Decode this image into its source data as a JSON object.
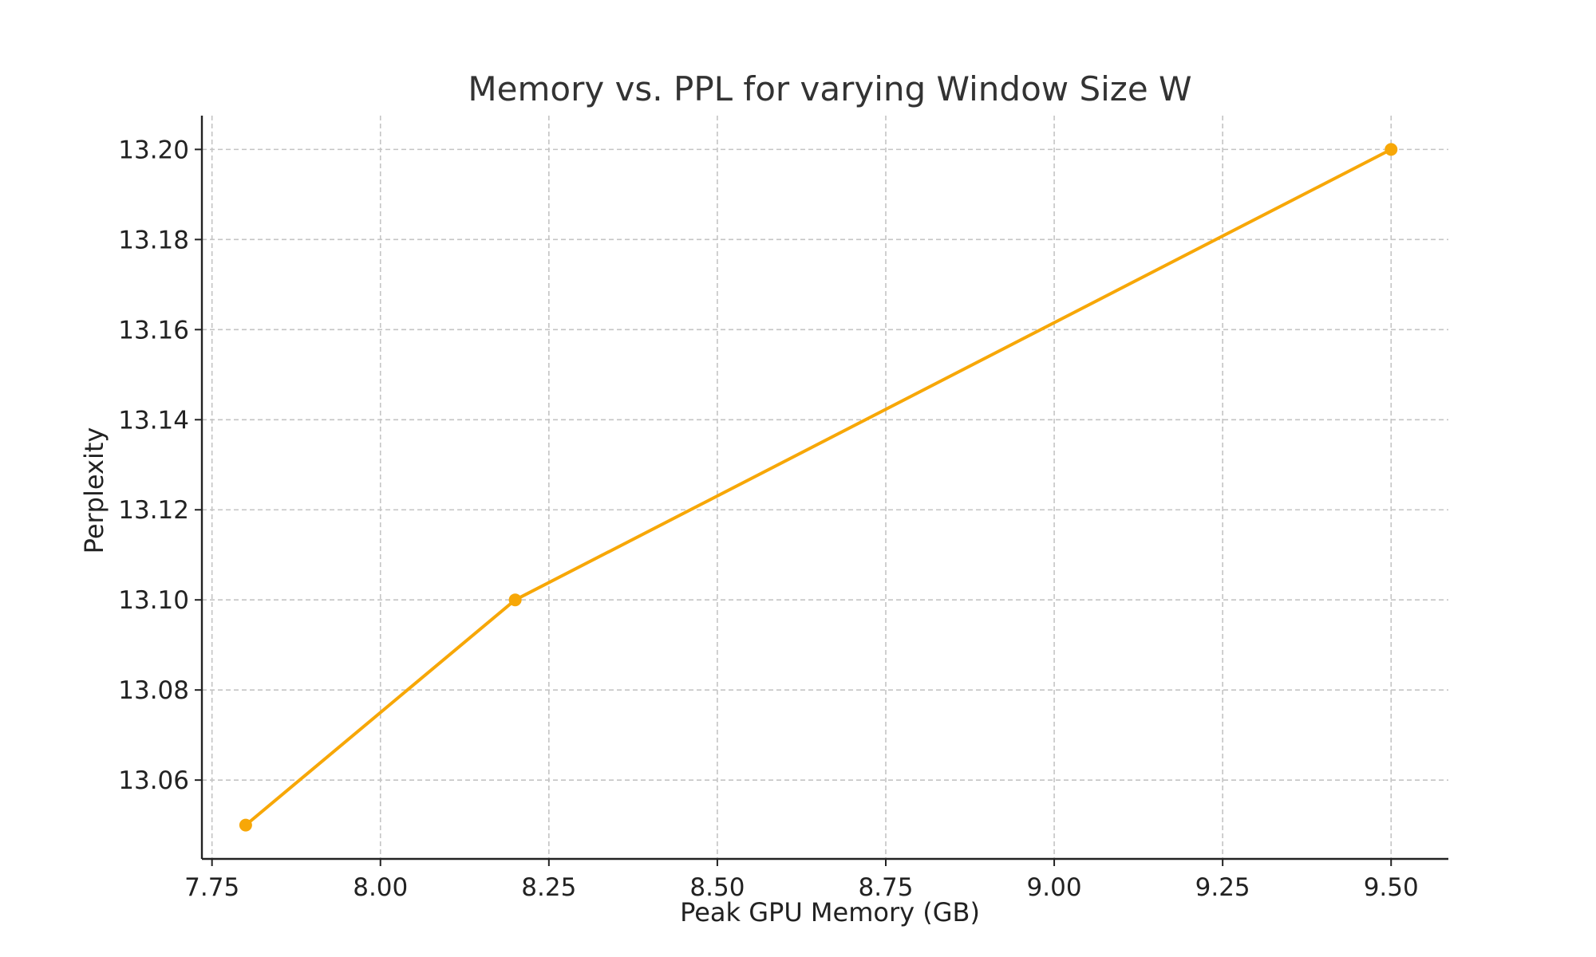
{
  "colors": {
    "series": "#f7a707",
    "grid": "#c4c4c4",
    "axis": "#222222",
    "title": "#333333"
  },
  "chart_data": {
    "type": "line",
    "title": "Memory vs. PPL for varying Window Size W",
    "xlabel": "Peak GPU Memory (GB)",
    "ylabel": "Perplexity",
    "xlim": [
      7.735,
      9.585
    ],
    "ylim": [
      13.0425,
      13.2075
    ],
    "x_ticks": [
      7.75,
      8.0,
      8.25,
      8.5,
      8.75,
      9.0,
      9.25,
      9.5
    ],
    "x_tick_labels": [
      "7.75",
      "8.00",
      "8.25",
      "8.50",
      "8.75",
      "9.00",
      "9.25",
      "9.50"
    ],
    "y_ticks": [
      13.06,
      13.08,
      13.1,
      13.12,
      13.14,
      13.16,
      13.18,
      13.2
    ],
    "y_tick_labels": [
      "13.06",
      "13.08",
      "13.10",
      "13.12",
      "13.14",
      "13.16",
      "13.18",
      "13.20"
    ],
    "grid": true,
    "series": [
      {
        "x": [
          7.8,
          8.2,
          9.5
        ],
        "y": [
          13.05,
          13.1,
          13.2
        ],
        "marker": "circle"
      }
    ]
  }
}
